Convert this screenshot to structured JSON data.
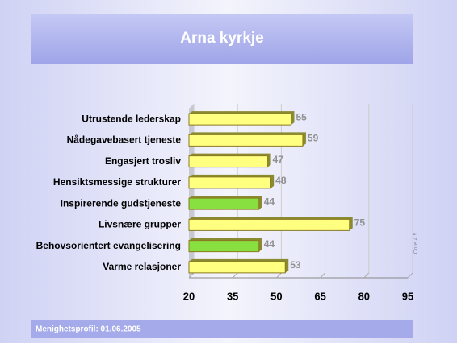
{
  "chart_data": {
    "type": "bar",
    "orientation": "horizontal",
    "title": "Arna kyrkje",
    "categories": [
      "Utrustende lederskap",
      "Nådegavebasert tjeneste",
      "Engasjert trosliv",
      "Hensiktsmessige strukturer",
      "Inspirerende gudstjeneste",
      "Livsnære grupper",
      "Behovsorientert evangelisering",
      "Varme relasjoner"
    ],
    "values": [
      55,
      59,
      47,
      48,
      44,
      75,
      44,
      53
    ],
    "colors": [
      "#ffff80",
      "#ffff80",
      "#ffff80",
      "#ffff80",
      "#88e040",
      "#ffff80",
      "#88e040",
      "#ffff80"
    ],
    "xlim": [
      20,
      95
    ],
    "xticks": [
      20,
      35,
      50,
      65,
      80,
      95
    ],
    "grid": true,
    "note": "Core 4.5",
    "footer": "Menighetsprofil:  01.06.2005"
  }
}
